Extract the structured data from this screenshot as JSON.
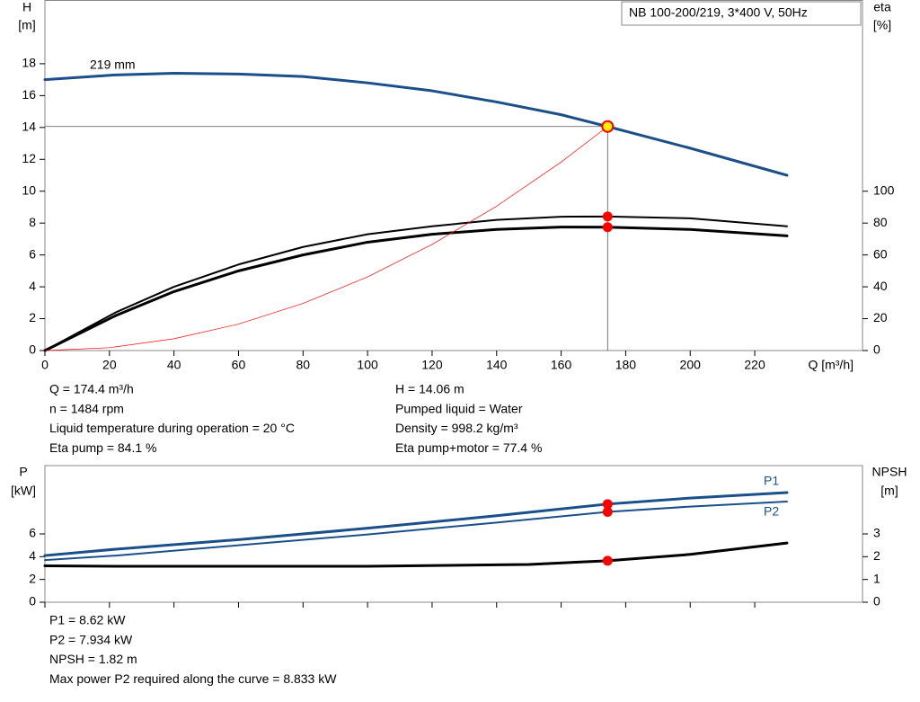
{
  "chart_data": [
    {
      "type": "line",
      "title": "NB 100-200/219, 3*400 V, 50Hz",
      "y_label": "H",
      "y_unit": "[m]",
      "y2_label": "eta",
      "y2_unit": "[%]",
      "x_label": "Q [m³/h]",
      "xlim": [
        0,
        253.4
      ],
      "xticks": [
        0,
        20,
        40,
        60,
        80,
        100,
        120,
        140,
        160,
        180,
        200,
        220
      ],
      "ylim": [
        0,
        22
      ],
      "yticks": [
        0,
        2,
        4,
        6,
        8,
        10,
        12,
        14,
        16,
        18
      ],
      "y2lim": [
        0,
        220
      ],
      "y2ticks": [
        0,
        20,
        40,
        60,
        80,
        100
      ],
      "operating_x": 174.4,
      "series": [
        {
          "name": "219 mm",
          "color": "#1a4f8a",
          "x": [
            0,
            22,
            40,
            60,
            80,
            100,
            120,
            140,
            160,
            174.4,
            200,
            230
          ],
          "values": [
            17.0,
            17.3,
            17.4,
            17.35,
            17.2,
            16.8,
            16.3,
            15.6,
            14.8,
            14.06,
            12.7,
            11.0
          ]
        },
        {
          "color": "#000000",
          "axis": "y2",
          "x": [
            0,
            22,
            40,
            60,
            80,
            100,
            120,
            140,
            160,
            174.4,
            200,
            230
          ],
          "values": [
            0,
            24,
            40,
            54,
            65,
            73,
            78,
            82,
            84,
            84.1,
            83,
            78
          ]
        },
        {
          "color": "#000000",
          "axis": "y2",
          "x": [
            0,
            22,
            40,
            60,
            80,
            100,
            120,
            140,
            160,
            174.4,
            200,
            230
          ],
          "values": [
            0,
            22,
            37,
            50,
            60,
            68,
            73,
            76,
            77.5,
            77.4,
            76,
            72
          ]
        },
        {
          "color": "#ff0000",
          "x": [
            0,
            20,
            40,
            60,
            80,
            100,
            120,
            140,
            160,
            174.4
          ],
          "values": [
            0,
            0.18,
            0.74,
            1.66,
            2.96,
            4.62,
            6.66,
            9.06,
            11.83,
            14.06
          ]
        }
      ]
    },
    {
      "type": "line",
      "y_label": "P",
      "y_unit": "[kW]",
      "y2_label": "NPSH",
      "y2_unit": "[m]",
      "xlim": [
        0,
        253.4
      ],
      "ylim": [
        0,
        12
      ],
      "yticks": [
        0,
        2,
        4,
        6
      ],
      "y2lim": [
        0,
        6
      ],
      "y2ticks": [
        0,
        1,
        2,
        3
      ],
      "operating_x": 174.4,
      "series": [
        {
          "name": "P1",
          "color": "#1a4f8a",
          "x": [
            0,
            22,
            60,
            100,
            140,
            174.4,
            200,
            230
          ],
          "values": [
            4.1,
            4.66,
            5.5,
            6.5,
            7.6,
            8.62,
            9.15,
            9.63
          ]
        },
        {
          "name": "P2",
          "color": "#1a4f8a",
          "x": [
            0,
            22,
            60,
            100,
            140,
            174.4,
            200,
            230
          ],
          "values": [
            3.7,
            4.1,
            5.0,
            5.95,
            7.0,
            7.934,
            8.4,
            8.84
          ]
        },
        {
          "color": "#000000",
          "axis": "y2",
          "x": [
            0,
            22,
            60,
            100,
            150,
            174.4,
            200,
            230
          ],
          "values": [
            1.6,
            1.58,
            1.58,
            1.58,
            1.66,
            1.82,
            2.1,
            2.6
          ]
        }
      ]
    }
  ],
  "info_top_left": [
    "Q = 174.4 m³/h",
    "n = 1484 rpm",
    "Liquid temperature during operation = 20 °C",
    "Eta pump = 84.1 %"
  ],
  "info_top_right": [
    "H = 14.06 m",
    "Pumped liquid = Water",
    "Density = 998.2 kg/m³",
    "Eta pump+motor = 77.4 %"
  ],
  "info_bottom": [
    "P1 = 8.62 kW",
    "P2 = 7.934 kW",
    "NPSH = 1.82 m",
    "Max power P2 required along the curve = 8.833 kW"
  ]
}
